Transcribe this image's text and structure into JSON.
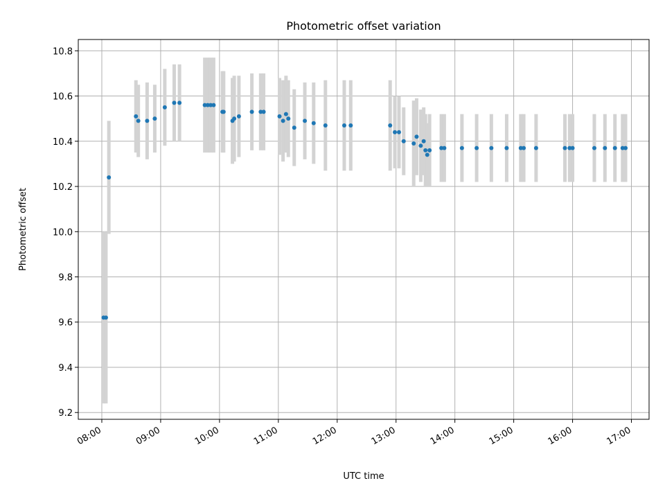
{
  "chart_data": {
    "type": "scatter",
    "title": "Photometric offset variation",
    "xlabel": "UTC time",
    "ylabel": "Photometric offset",
    "x_unit": "hours UTC",
    "xlim": [
      7.6,
      17.3
    ],
    "ylim": [
      9.17,
      10.85
    ],
    "xticks": [
      8,
      9,
      10,
      11,
      12,
      13,
      14,
      15,
      16,
      17
    ],
    "xtick_labels": [
      "08:00",
      "09:00",
      "10:00",
      "11:00",
      "12:00",
      "13:00",
      "14:00",
      "15:00",
      "16:00",
      "17:00"
    ],
    "yticks": [
      9.2,
      9.4,
      9.6,
      9.8,
      10.0,
      10.2,
      10.4,
      10.6,
      10.8
    ],
    "ytick_labels": [
      "9.2",
      "9.4",
      "9.6",
      "9.8",
      "10.0",
      "10.2",
      "10.4",
      "10.6",
      "10.8"
    ],
    "grid": true,
    "legend": "none",
    "colors": {
      "point": "#1f77b4",
      "errorbar": "#d3d3d3",
      "grid": "#b0b0b0"
    },
    "series": [
      {
        "x": [
          8.03,
          8.07,
          8.12,
          8.58,
          8.62,
          8.77,
          8.9,
          9.07,
          9.23,
          9.32,
          9.75,
          9.8,
          9.85,
          9.9,
          10.05,
          10.07,
          10.22,
          10.25,
          10.33,
          10.55,
          10.7,
          10.75,
          11.02,
          11.08,
          11.13,
          11.17,
          11.27,
          11.45,
          11.6,
          11.8,
          12.12,
          12.23,
          12.9,
          12.98,
          13.05,
          13.13,
          13.3,
          13.35,
          13.42,
          13.47,
          13.5,
          13.53,
          13.57,
          13.77,
          13.82,
          14.12,
          14.37,
          14.62,
          14.88,
          15.12,
          15.17,
          15.38,
          15.87,
          15.95,
          16.0,
          16.37,
          16.55,
          16.72,
          16.85,
          16.9
        ],
        "y": [
          9.62,
          9.62,
          10.24,
          10.51,
          10.49,
          10.49,
          10.5,
          10.55,
          10.57,
          10.57,
          10.56,
          10.56,
          10.56,
          10.56,
          10.53,
          10.53,
          10.49,
          10.5,
          10.51,
          10.53,
          10.53,
          10.53,
          10.51,
          10.49,
          10.52,
          10.5,
          10.46,
          10.49,
          10.48,
          10.47,
          10.47,
          10.47,
          10.47,
          10.44,
          10.44,
          10.4,
          10.39,
          10.42,
          10.38,
          10.4,
          10.36,
          10.34,
          10.36,
          10.37,
          10.37,
          10.37,
          10.37,
          10.37,
          10.37,
          10.37,
          10.37,
          10.37,
          10.37,
          10.37,
          10.37,
          10.37,
          10.37,
          10.37,
          10.37,
          10.37
        ],
        "err": [
          0.38,
          0.38,
          0.25,
          0.16,
          0.16,
          0.17,
          0.15,
          0.17,
          0.17,
          0.17,
          0.21,
          0.21,
          0.21,
          0.21,
          0.18,
          0.18,
          0.19,
          0.19,
          0.18,
          0.17,
          0.17,
          0.17,
          0.17,
          0.18,
          0.17,
          0.17,
          0.17,
          0.17,
          0.18,
          0.2,
          0.2,
          0.2,
          0.2,
          0.16,
          0.16,
          0.15,
          0.19,
          0.17,
          0.16,
          0.15,
          0.16,
          0.14,
          0.16,
          0.15,
          0.15,
          0.15,
          0.15,
          0.15,
          0.15,
          0.15,
          0.15,
          0.15,
          0.15,
          0.15,
          0.15,
          0.15,
          0.15,
          0.15,
          0.15,
          0.15
        ]
      }
    ]
  }
}
